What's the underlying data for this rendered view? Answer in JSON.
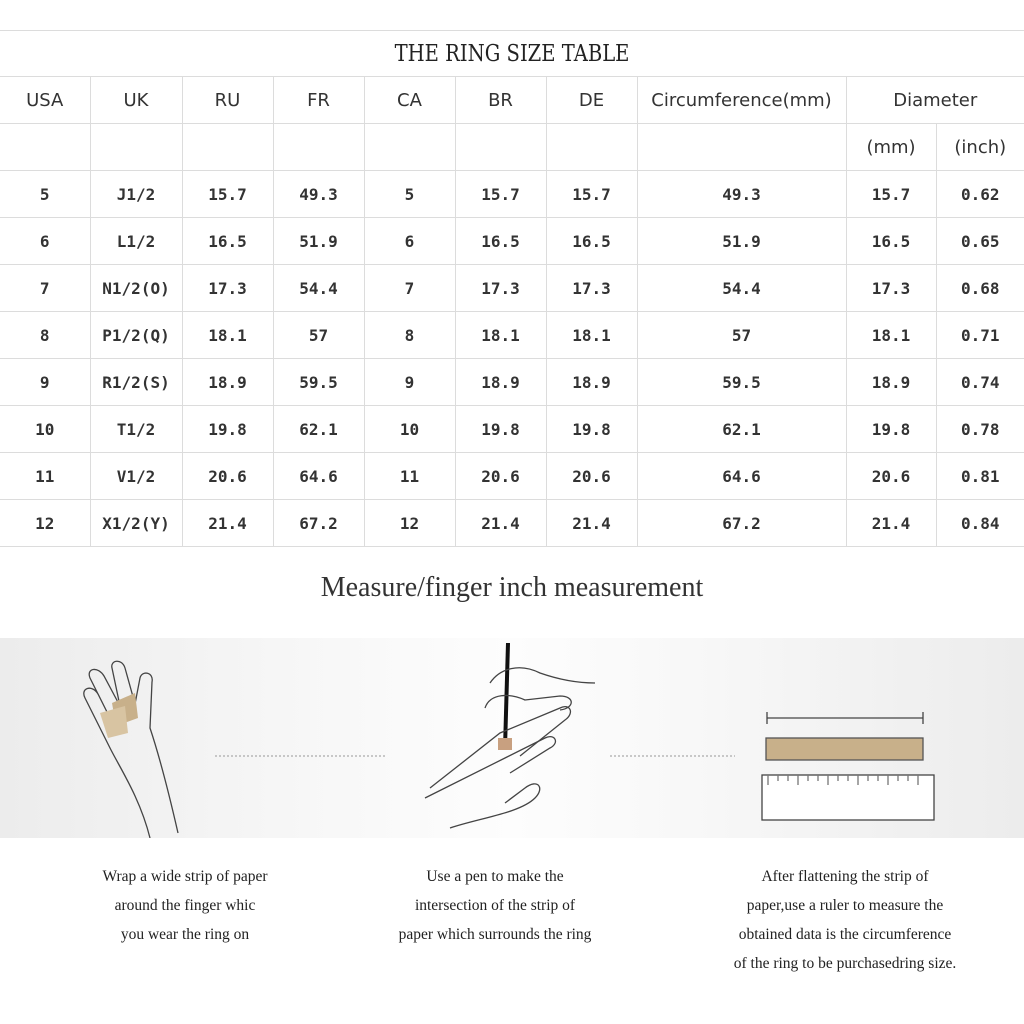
{
  "table": {
    "title": "THE RING SIZE TABLE",
    "headers": [
      "USA",
      "UK",
      "RU",
      "FR",
      "CA",
      "BR",
      "DE",
      "Circumference(mm)",
      "Diameter"
    ],
    "subheaders": [
      "(mm)",
      "(inch)"
    ],
    "rows": [
      [
        "5",
        "J1/2",
        "15.7",
        "49.3",
        "5",
        "15.7",
        "15.7",
        "49.3",
        "15.7",
        "0.62"
      ],
      [
        "6",
        "L1/2",
        "16.5",
        "51.9",
        "6",
        "16.5",
        "16.5",
        "51.9",
        "16.5",
        "0.65"
      ],
      [
        "7",
        "N1/2(O)",
        "17.3",
        "54.4",
        "7",
        "17.3",
        "17.3",
        "54.4",
        "17.3",
        "0.68"
      ],
      [
        "8",
        "P1/2(Q)",
        "18.1",
        "57",
        "8",
        "18.1",
        "18.1",
        "57",
        "18.1",
        "0.71"
      ],
      [
        "9",
        "R1/2(S)",
        "18.9",
        "59.5",
        "9",
        "18.9",
        "18.9",
        "59.5",
        "18.9",
        "0.74"
      ],
      [
        "10",
        "T1/2",
        "19.8",
        "62.1",
        "10",
        "19.8",
        "19.8",
        "62.1",
        "19.8",
        "0.78"
      ],
      [
        "11",
        "V1/2",
        "20.6",
        "64.6",
        "11",
        "20.6",
        "20.6",
        "64.6",
        "20.6",
        "0.81"
      ],
      [
        "12",
        "X1/2(Y)",
        "21.4",
        "67.2",
        "12",
        "21.4",
        "21.4",
        "67.2",
        "21.4",
        "0.84"
      ]
    ]
  },
  "section_title": "Measure/finger inch measurement",
  "steps": [
    {
      "icon": "hand-wrap-paper-icon",
      "lines": [
        "Wrap a wide strip of paper",
        "around the finger whic",
        "you wear the ring on"
      ]
    },
    {
      "icon": "hand-pen-mark-icon",
      "lines": [
        "Use a pen to make the",
        "intersection of the strip of",
        "paper which surrounds the ring"
      ]
    },
    {
      "icon": "ruler-measure-icon",
      "lines": [
        "After flattening the strip of",
        "paper,use a ruler to measure the",
        "obtained data is the circumference",
        "of the ring to be purchasedring size."
      ]
    }
  ],
  "colors": {
    "paper_strip": "#c8b08a",
    "grid_line": "#dcdcdc"
  }
}
